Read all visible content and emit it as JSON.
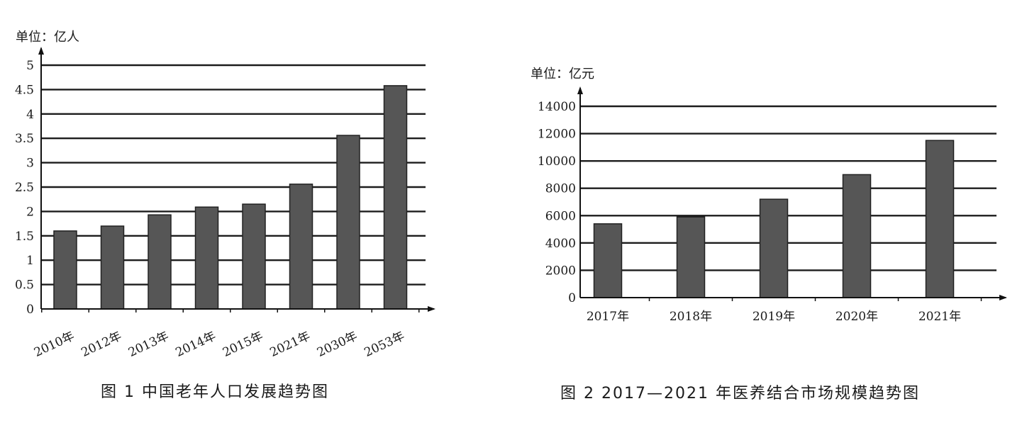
{
  "chart_data": [
    {
      "type": "bar",
      "unit": "单位：亿人",
      "caption": "图 1   中国老年人口发展趋势图",
      "categories": [
        "2010年",
        "2012年",
        "2013年",
        "2014年",
        "2015年",
        "2021年",
        "2030年",
        "2053年"
      ],
      "values": [
        1.6,
        1.7,
        1.93,
        2.09,
        2.15,
        2.56,
        3.56,
        4.58
      ],
      "yticks": [
        "0",
        "0.5",
        "1",
        "1.5",
        "2",
        "2.5",
        "3",
        "3.5",
        "4",
        "4.5",
        "5"
      ],
      "ylim": [
        0,
        5
      ],
      "grid": true,
      "colors": {
        "bar": "#565656",
        "axis": "#111111"
      }
    },
    {
      "type": "bar",
      "unit": "单位：亿元",
      "caption": "图 2   2017—2021 年医养结合市场规模趋势图",
      "categories": [
        "2017年",
        "2018年",
        "2019年",
        "2020年",
        "2021年"
      ],
      "values": [
        5400,
        5900,
        7200,
        9000,
        11500
      ],
      "yticks": [
        "0",
        "2000",
        "4000",
        "6000",
        "8000",
        "10000",
        "12000",
        "14000"
      ],
      "ylim": [
        0,
        14000
      ],
      "grid": true,
      "colors": {
        "bar": "#565656",
        "axis": "#111111"
      }
    }
  ]
}
